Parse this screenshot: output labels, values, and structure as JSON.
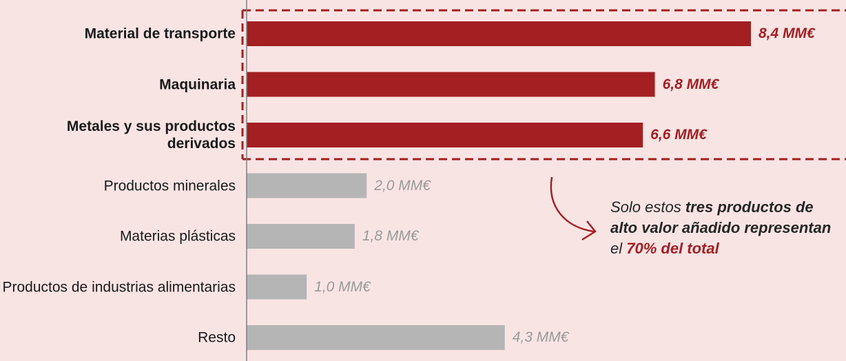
{
  "chart_data": {
    "type": "bar",
    "orientation": "horizontal",
    "unit": "MM€",
    "categories": [
      "Material de transporte",
      "Maquinaria",
      "Metales  y sus productos derivados",
      "Productos minerales",
      "Materias plásticas",
      "Productos de industrias alimentarias",
      "Resto"
    ],
    "values": [
      8.4,
      6.8,
      6.6,
      2.0,
      1.8,
      1.0,
      4.3
    ],
    "value_labels": [
      "8,4 MM€",
      "6,8 MM€",
      "6,6 MM€",
      "2,0 MM€",
      "1,8 MM€",
      "1,0 MM€",
      "4,3 MM€"
    ],
    "highlighted": [
      true,
      true,
      true,
      false,
      false,
      false,
      false
    ],
    "xlim": [
      0,
      9.75
    ],
    "grid": false,
    "colors": {
      "highlight": "#a31f22",
      "other": "#b5b5b5",
      "background": "#f9e4e4"
    }
  },
  "annotation": {
    "parts": [
      {
        "text": "Solo estos ",
        "bold": false,
        "red": false
      },
      {
        "text": "tres productos de alto valor añadido representan",
        "bold": true,
        "red": false
      },
      {
        "text": " el ",
        "bold": false,
        "red": false
      },
      {
        "text": "70% del total",
        "bold": true,
        "red": true
      }
    ]
  }
}
